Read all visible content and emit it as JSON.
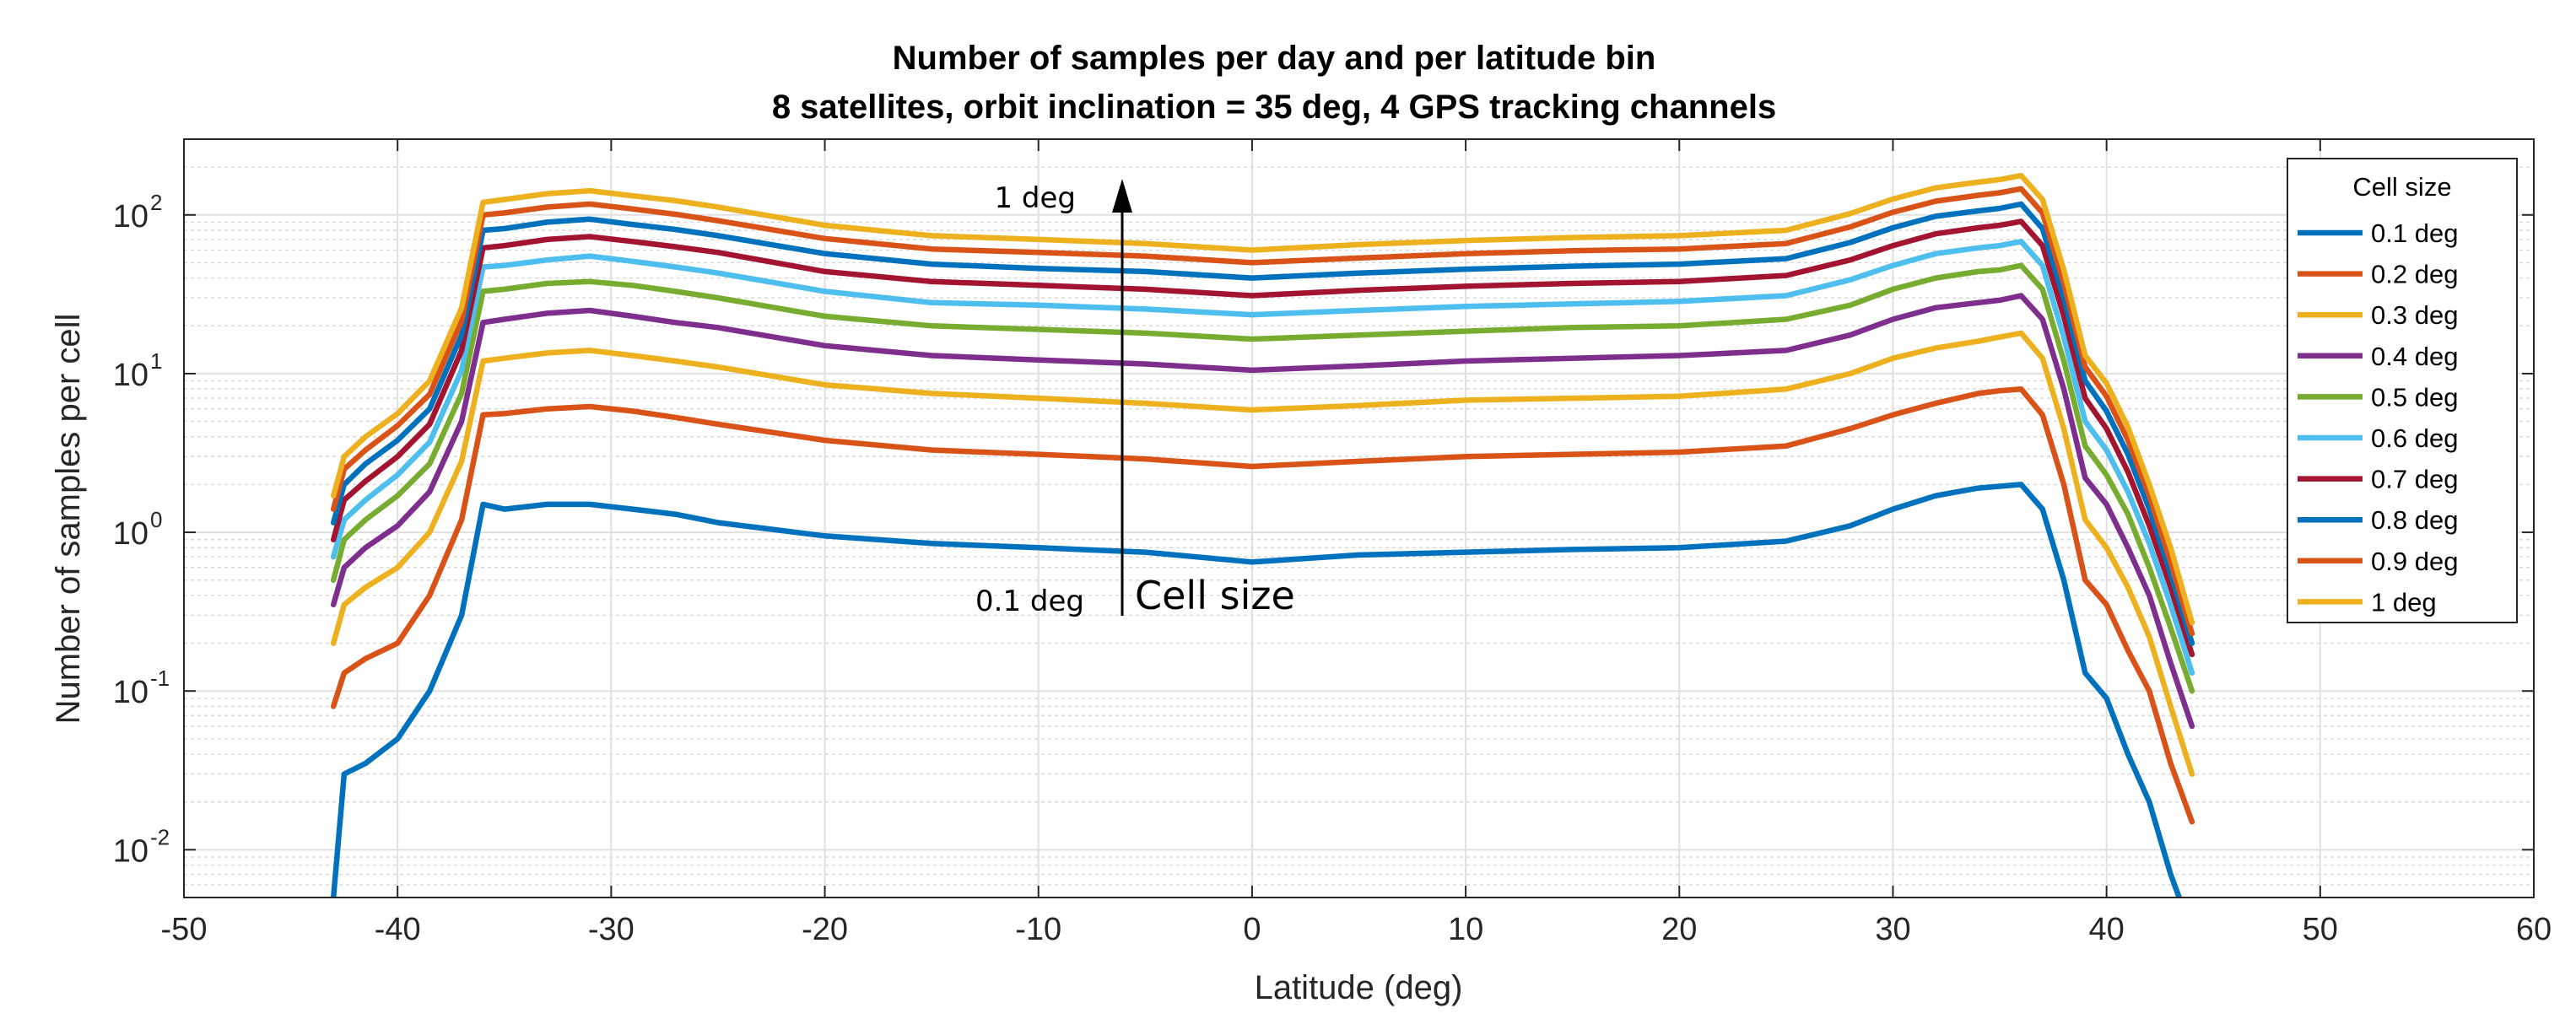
{
  "chart_data": {
    "type": "line",
    "title": "Number of samples per day and per latitude bin",
    "subtitle": "8 satellites, orbit inclination = 35 deg, 4 GPS tracking channels",
    "xlabel": "Latitude (deg)",
    "ylabel": "Number of samples per cell",
    "xlim": [
      -50,
      60
    ],
    "ylim": [
      0.005,
      300
    ],
    "yscale": "log",
    "grid": true,
    "minor_grid": true,
    "x_ticks": [
      "-50",
      "-40",
      "-30",
      "-20",
      "-10",
      "0",
      "10",
      "20",
      "30",
      "40",
      "50",
      "60"
    ],
    "y_ticks": [
      {
        "base": "10",
        "exp": "-2",
        "value": 0.01
      },
      {
        "base": "10",
        "exp": "-1",
        "value": 0.1
      },
      {
        "base": "10",
        "exp": "0",
        "value": 1
      },
      {
        "base": "10",
        "exp": "1",
        "value": 10
      },
      {
        "base": "10",
        "exp": "2",
        "value": 100
      }
    ],
    "legend_title": "Cell size",
    "legend_placement": "top-right",
    "x": [
      -43,
      -42.5,
      -41.5,
      -40,
      -38.5,
      -37,
      -36,
      -35,
      -33,
      -31,
      -29,
      -27,
      -25,
      -20,
      -15,
      -10,
      -5,
      0,
      5,
      10,
      15,
      20,
      25,
      28,
      30,
      32,
      34,
      35,
      36,
      37,
      38,
      39,
      40,
      41,
      42,
      43,
      44
    ],
    "series": [
      {
        "name": "0.1 deg",
        "color": "#0072BD",
        "values": [
          0.005,
          0.03,
          0.035,
          0.05,
          0.1,
          0.3,
          1.5,
          1.4,
          1.5,
          1.5,
          1.4,
          1.3,
          1.15,
          0.95,
          0.85,
          0.8,
          0.75,
          0.65,
          0.72,
          0.75,
          0.78,
          0.8,
          0.88,
          1.1,
          1.4,
          1.7,
          1.9,
          1.95,
          2.0,
          1.4,
          0.5,
          0.13,
          0.09,
          0.04,
          0.02,
          0.007,
          0.003
        ]
      },
      {
        "name": "0.2 deg",
        "color": "#D95319",
        "values": [
          0.08,
          0.13,
          0.16,
          0.2,
          0.4,
          1.2,
          5.5,
          5.6,
          6.0,
          6.2,
          5.8,
          5.3,
          4.8,
          3.8,
          3.3,
          3.1,
          2.9,
          2.6,
          2.8,
          3.0,
          3.1,
          3.2,
          3.5,
          4.5,
          5.5,
          6.5,
          7.5,
          7.8,
          8.0,
          5.5,
          2.0,
          0.5,
          0.35,
          0.18,
          0.1,
          0.035,
          0.015
        ]
      },
      {
        "name": "0.3 deg",
        "color": "#EDB120",
        "values": [
          0.2,
          0.35,
          0.45,
          0.6,
          1.0,
          2.8,
          12,
          12.5,
          13.5,
          14,
          13,
          12,
          11,
          8.5,
          7.5,
          7.0,
          6.5,
          5.9,
          6.3,
          6.8,
          7.0,
          7.2,
          8.0,
          10,
          12.5,
          14.5,
          16,
          17,
          18,
          12.5,
          4.5,
          1.2,
          0.8,
          0.45,
          0.22,
          0.08,
          0.03
        ]
      },
      {
        "name": "0.4 deg",
        "color": "#7E2F8E",
        "values": [
          0.35,
          0.6,
          0.8,
          1.1,
          1.8,
          5.0,
          21,
          22,
          24,
          25,
          23,
          21,
          19.5,
          15,
          13,
          12.2,
          11.5,
          10.5,
          11.2,
          12,
          12.5,
          13,
          14,
          17.5,
          22,
          26,
          28,
          29,
          31,
          22,
          8,
          2.2,
          1.5,
          0.8,
          0.4,
          0.15,
          0.06
        ]
      },
      {
        "name": "0.5 deg",
        "color": "#77AC30",
        "values": [
          0.5,
          0.9,
          1.2,
          1.7,
          2.7,
          7.5,
          33,
          34,
          37,
          38,
          36,
          33,
          30,
          23,
          20,
          19,
          18,
          16.5,
          17.5,
          18.5,
          19.5,
          20,
          22,
          27,
          34,
          40,
          44,
          45,
          48,
          34,
          12,
          3.5,
          2.3,
          1.3,
          0.6,
          0.25,
          0.1
        ]
      },
      {
        "name": "0.6 deg",
        "color": "#4DBEEE",
        "values": [
          0.7,
          1.2,
          1.6,
          2.3,
          3.7,
          10.5,
          47,
          48,
          52,
          55,
          51,
          47,
          43,
          33,
          28,
          27,
          25.5,
          23.5,
          25,
          26.5,
          27.5,
          28.5,
          31,
          39,
          48,
          57,
          62,
          64,
          68,
          48,
          17,
          5,
          3.3,
          1.8,
          0.85,
          0.35,
          0.13
        ]
      },
      {
        "name": "0.7 deg",
        "color": "#A2142F",
        "values": [
          0.9,
          1.6,
          2.1,
          3.0,
          4.8,
          14,
          62,
          64,
          70,
          73,
          68,
          63,
          58,
          44,
          38,
          36,
          34,
          31,
          33.5,
          35.5,
          37,
          38,
          41.5,
          52,
          64,
          76,
          83,
          86,
          91,
          64,
          23,
          7,
          4.5,
          2.4,
          1.1,
          0.45,
          0.17
        ]
      },
      {
        "name": "0.8 deg",
        "color": "#0072BD",
        "values": [
          1.15,
          2.0,
          2.7,
          3.8,
          6.0,
          17.5,
          80,
          82,
          90,
          94,
          87,
          81,
          74,
          57,
          49,
          46,
          44,
          40,
          43,
          45.5,
          47.5,
          49,
          53,
          67,
          83,
          98,
          106,
          110,
          117,
          82,
          30,
          9,
          5.8,
          3.1,
          1.4,
          0.55,
          0.2
        ]
      },
      {
        "name": "0.9 deg",
        "color": "#D95319",
        "values": [
          1.4,
          2.5,
          3.3,
          4.7,
          7.4,
          21.5,
          100,
          103,
          112,
          117,
          109,
          101,
          92,
          71,
          61,
          58,
          55,
          50,
          53.5,
          57,
          59.5,
          61,
          66,
          84,
          104,
          122,
          133,
          138,
          146,
          103,
          37,
          11,
          7.2,
          3.8,
          1.7,
          0.65,
          0.23
        ]
      },
      {
        "name": "1 deg",
        "color": "#EDB120",
        "values": [
          1.7,
          3.0,
          4.0,
          5.6,
          9.0,
          26,
          120,
          125,
          136,
          142,
          132,
          123,
          112,
          86,
          74,
          70,
          66,
          60,
          65,
          69,
          72,
          74,
          80,
          102,
          126,
          148,
          161,
          167,
          177,
          125,
          45,
          13,
          8.7,
          4.6,
          2.0,
          0.8,
          0.27
        ]
      }
    ],
    "annotations": [
      {
        "text": "1 deg"
      },
      {
        "text": "0.1 deg"
      },
      {
        "text": "Cell size"
      }
    ]
  }
}
